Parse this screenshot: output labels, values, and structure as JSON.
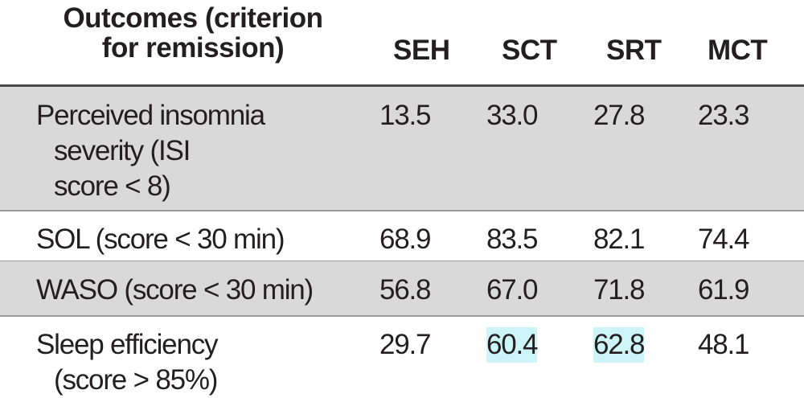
{
  "table": {
    "header": [
      "Outcomes (criterion\nfor remission)",
      "SEH",
      "SCT",
      "SRT",
      "MCT"
    ],
    "rows": [
      [
        "Perceived insomnia\nseverity (ISI\nscore < 8)",
        "13.5",
        "33.0",
        "27.8",
        "23.3"
      ],
      [
        "SOL (score < 30 min)",
        "68.9",
        "83.5",
        "82.1",
        "74.4"
      ],
      [
        "WASO (score < 30 min)",
        "56.8",
        "67.0",
        "71.8",
        "61.9"
      ],
      [
        "Sleep efficiency\n(score > 85%)",
        "29.7",
        "60.4",
        "62.8",
        "48.1"
      ]
    ]
  }
}
